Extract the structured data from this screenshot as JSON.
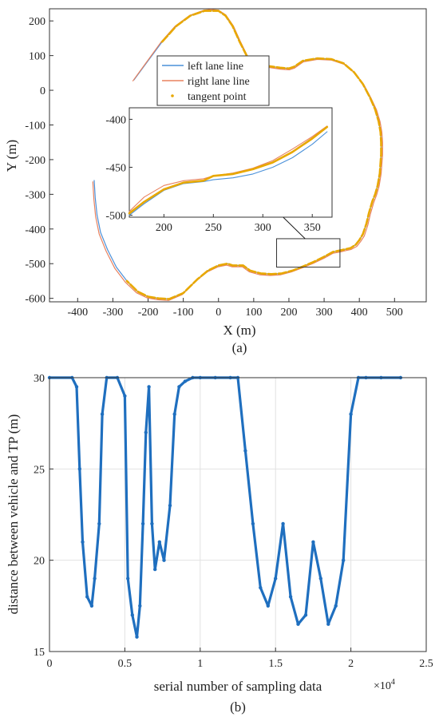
{
  "chart_data": [
    {
      "type": "line",
      "caption": "(a)",
      "xlabel": "X (m)",
      "ylabel": "Y (m)",
      "xlim": [
        -480,
        590
      ],
      "ylim": [
        -610,
        235
      ],
      "xticks": [
        -400,
        -300,
        -200,
        -100,
        0,
        100,
        200,
        300,
        400,
        500
      ],
      "yticks": [
        200,
        100,
        0,
        -100,
        -200,
        -300,
        -400,
        -500,
        -600
      ],
      "grid": false,
      "legend_position": "upper-center",
      "series": [
        {
          "name": "left lane line",
          "color": "#4a90d9",
          "x": [
            -240,
            -200,
            -160,
            -120,
            -80,
            -40,
            -20,
            0,
            20,
            40,
            60,
            80,
            100,
            140,
            175,
            200,
            215,
            240,
            280,
            320,
            355,
            385,
            410,
            430,
            445,
            455,
            460,
            462,
            462,
            458,
            452,
            445,
            437,
            427,
            420,
            410,
            400,
            390,
            375,
            362,
            345,
            325,
            300,
            270,
            240,
            210,
            180,
            150,
            120,
            90,
            70,
            60,
            55,
            40,
            25,
            0,
            -30,
            -60,
            -100,
            -140,
            -170,
            -200,
            -230,
            -260,
            -290,
            -315,
            -335,
            -345,
            -350,
            -353
          ],
          "y": [
            30,
            85,
            140,
            185,
            215,
            229,
            231,
            229,
            215,
            185,
            140,
            100,
            75,
            70,
            65,
            63,
            68,
            85,
            92,
            90,
            78,
            52,
            18,
            -20,
            -55,
            -90,
            -120,
            -150,
            -185,
            -240,
            -275,
            -300,
            -320,
            -355,
            -385,
            -415,
            -432,
            -445,
            -455,
            -458,
            -462,
            -466,
            -480,
            -495,
            -508,
            -520,
            -528,
            -530,
            -528,
            -520,
            -505,
            -505,
            -505,
            -505,
            -500,
            -505,
            -520,
            -545,
            -585,
            -602,
            -600,
            -595,
            -580,
            -550,
            -510,
            -460,
            -410,
            -360,
            -310,
            -260
          ]
        },
        {
          "name": "right lane line",
          "color": "#e8825f",
          "x": [
            -243,
            -203,
            -163,
            -123,
            -82,
            -41,
            -21,
            0,
            21,
            42,
            63,
            83,
            103,
            142,
            176,
            201,
            216,
            241,
            281,
            321,
            357,
            388,
            413,
            433,
            449,
            459,
            464,
            466,
            466,
            462,
            456,
            449,
            441,
            431,
            424,
            414,
            403,
            393,
            377,
            363,
            346,
            325,
            300,
            269,
            238,
            207,
            177,
            147,
            117,
            88,
            68,
            58,
            53,
            38,
            23,
            -1,
            -32,
            -63,
            -103,
            -142,
            -172,
            -202,
            -233,
            -264,
            -294,
            -319,
            -339,
            -349,
            -354,
            -357
          ],
          "y": [
            27,
            83,
            139,
            185,
            216,
            231,
            233,
            231,
            217,
            186,
            139,
            97,
            71,
            66,
            61,
            59,
            64,
            82,
            89,
            87,
            75,
            49,
            16,
            -22,
            -57,
            -91,
            -121,
            -151,
            -186,
            -241,
            -277,
            -302,
            -323,
            -358,
            -389,
            -420,
            -437,
            -450,
            -459,
            -462,
            -466,
            -470,
            -484,
            -499,
            -512,
            -524,
            -532,
            -534,
            -532,
            -524,
            -509,
            -509,
            -509,
            -509,
            -504,
            -509,
            -524,
            -549,
            -589,
            -606,
            -604,
            -599,
            -584,
            -554,
            -514,
            -464,
            -414,
            -364,
            -314,
            -264
          ]
        },
        {
          "name": "tangent point",
          "color": "#e8a800",
          "x": [
            -160,
            -120,
            -80,
            -40,
            0,
            20,
            40,
            60,
            80,
            100,
            140,
            175,
            200,
            215,
            240,
            280,
            320,
            355,
            385,
            410,
            430,
            445,
            455,
            460,
            462,
            462,
            458,
            452,
            445,
            437,
            427,
            420,
            410,
            400,
            390,
            375,
            362,
            345,
            325,
            300,
            270,
            240,
            210,
            180,
            150,
            120,
            90,
            70,
            60,
            55,
            40,
            25,
            0,
            -30,
            -60,
            -100,
            -140,
            -170,
            -200,
            -230,
            -260
          ],
          "y": [
            140,
            185,
            215,
            229,
            229,
            215,
            185,
            140,
            100,
            75,
            70,
            65,
            63,
            68,
            85,
            92,
            90,
            78,
            52,
            18,
            -20,
            -55,
            -90,
            -120,
            -150,
            -185,
            -240,
            -275,
            -300,
            -320,
            -355,
            -385,
            -415,
            -432,
            -445,
            -455,
            -458,
            -462,
            -466,
            -480,
            -495,
            -508,
            -520,
            -528,
            -530,
            -528,
            -520,
            -505,
            -505,
            -505,
            -505,
            -500,
            -505,
            -520,
            -545,
            -585,
            -602,
            -600,
            -595,
            -580,
            -550
          ]
        }
      ],
      "zoom_box": {
        "x": [
          165,
          345
        ],
        "y": [
          -510,
          -428
        ]
      },
      "inset": {
        "xlim": [
          165,
          370
        ],
        "ylim": [
          -502,
          -388
        ],
        "xticks": [
          200,
          250,
          300,
          350
        ],
        "yticks": [
          -400,
          -450,
          -500
        ],
        "series": [
          {
            "name": "left lane line",
            "color": "#4a90d9",
            "x": [
              165,
              180,
              200,
              220,
              240,
              250,
              270,
              290,
              310,
              330,
              350,
              365
            ],
            "y": [
              -500,
              -488,
              -474,
              -467,
              -465,
              -463,
              -461,
              -457,
              -450,
              -440,
              -426,
              -413
            ]
          },
          {
            "name": "right lane line",
            "color": "#e8825f",
            "x": [
              165,
              180,
              200,
              220,
              240,
              250,
              270,
              290,
              310,
              330,
              350,
              365
            ],
            "y": [
              -496,
              -481,
              -469,
              -464,
              -462,
              -459,
              -456,
              -451,
              -443,
              -431,
              -418,
              -407
            ]
          },
          {
            "name": "tangent point",
            "color": "#e8a800",
            "x": [
              165,
              180,
              200,
              220,
              240,
              250,
              270,
              290,
              310,
              330,
              350,
              365
            ],
            "y": [
              -498,
              -486,
              -473,
              -466,
              -464,
              -459,
              -457,
              -452,
              -445,
              -434,
              -420,
              -408
            ]
          }
        ]
      }
    },
    {
      "type": "scatter",
      "caption": "(b)",
      "xlabel": "serial number of sampling data",
      "ylabel": "distance between vehicle and TP (m)",
      "x_multiplier": "×10",
      "x_multiplier_exp": "4",
      "xlim": [
        0,
        2.5
      ],
      "ylim": [
        15,
        30
      ],
      "xticks": [
        0,
        0.5,
        1,
        1.5,
        2,
        2.5
      ],
      "xtick_labels": [
        "0",
        "0.5",
        "1",
        "1.5",
        "2",
        "2.5"
      ],
      "yticks": [
        15,
        20,
        25,
        30
      ],
      "grid": true,
      "series": [
        {
          "color": "#1f6fbf",
          "x": [
            0,
            0.15,
            0.18,
            0.2,
            0.22,
            0.25,
            0.28,
            0.3,
            0.33,
            0.35,
            0.38,
            0.45,
            0.5,
            0.52,
            0.55,
            0.58,
            0.6,
            0.62,
            0.64,
            0.66,
            0.68,
            0.7,
            0.73,
            0.76,
            0.8,
            0.83,
            0.86,
            0.9,
            0.95,
            1.0,
            1.1,
            1.2,
            1.25,
            1.3,
            1.35,
            1.4,
            1.45,
            1.5,
            1.55,
            1.6,
            1.65,
            1.7,
            1.75,
            1.8,
            1.85,
            1.9,
            1.95,
            2.0,
            2.05,
            2.1,
            2.2,
            2.33
          ],
          "y": [
            30,
            30,
            29.5,
            25,
            21,
            18,
            17.5,
            19,
            22,
            28,
            30,
            30,
            29,
            19,
            17,
            15.8,
            17.5,
            22,
            27,
            29.5,
            22,
            19.5,
            21,
            20,
            23,
            28,
            29.5,
            29.8,
            30,
            30,
            30,
            30,
            30,
            26,
            22,
            18.5,
            17.5,
            19,
            22,
            18,
            16.5,
            17,
            21,
            19,
            16.5,
            17.5,
            20,
            28,
            30,
            30,
            30,
            30
          ]
        }
      ]
    }
  ]
}
